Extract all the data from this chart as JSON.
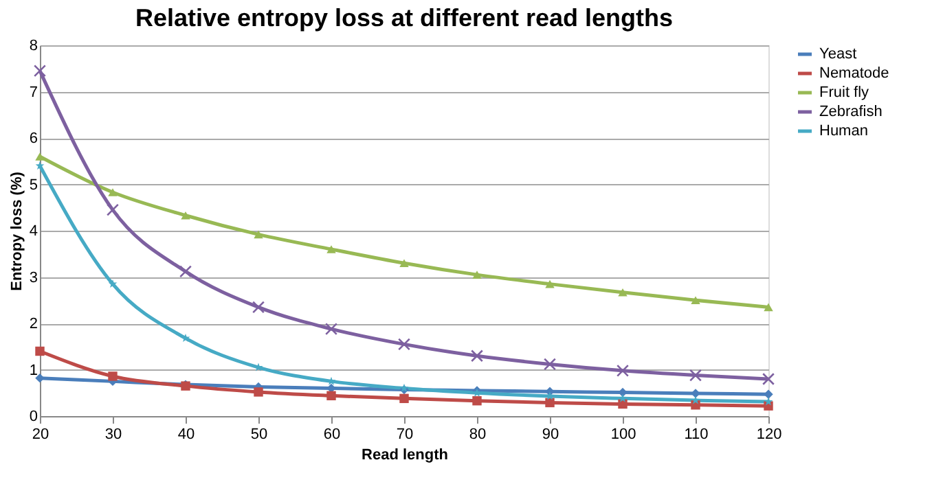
{
  "chart_data": {
    "type": "line",
    "title": "Relative entropy loss at different read lengths",
    "xlabel": "Read length",
    "ylabel": "Entropy loss (%)",
    "x": [
      20,
      30,
      40,
      50,
      60,
      70,
      80,
      90,
      100,
      110,
      120
    ],
    "xlim": [
      20,
      120
    ],
    "xticks": [
      20,
      30,
      40,
      50,
      60,
      70,
      80,
      90,
      100,
      110,
      120
    ],
    "ylim": [
      0,
      8
    ],
    "yticks": [
      0,
      1,
      2,
      3,
      4,
      5,
      6,
      7,
      8
    ],
    "grid": "y",
    "legend": "right",
    "series": [
      {
        "name": "Yeast",
        "color": "#4a7ebb",
        "marker": "diamond",
        "values": [
          0.82,
          0.75,
          0.68,
          0.63,
          0.6,
          0.57,
          0.55,
          0.53,
          0.51,
          0.49,
          0.47
        ]
      },
      {
        "name": "Nematode",
        "color": "#be4b48",
        "marker": "square",
        "values": [
          1.4,
          0.86,
          0.65,
          0.52,
          0.44,
          0.38,
          0.33,
          0.29,
          0.26,
          0.24,
          0.22
        ]
      },
      {
        "name": "Fruit fly",
        "color": "#98b954",
        "marker": "triangle",
        "values": [
          5.6,
          4.83,
          4.33,
          3.92,
          3.6,
          3.3,
          3.05,
          2.85,
          2.67,
          2.5,
          2.35
        ]
      },
      {
        "name": "Zebrafish",
        "color": "#7d60a0",
        "marker": "cross",
        "values": [
          7.45,
          4.45,
          3.12,
          2.35,
          1.88,
          1.55,
          1.3,
          1.12,
          0.98,
          0.88,
          0.8
        ]
      },
      {
        "name": "Human",
        "color": "#46aac5",
        "marker": "star",
        "values": [
          5.4,
          2.85,
          1.68,
          1.05,
          0.75,
          0.6,
          0.5,
          0.43,
          0.38,
          0.34,
          0.31
        ]
      }
    ]
  }
}
